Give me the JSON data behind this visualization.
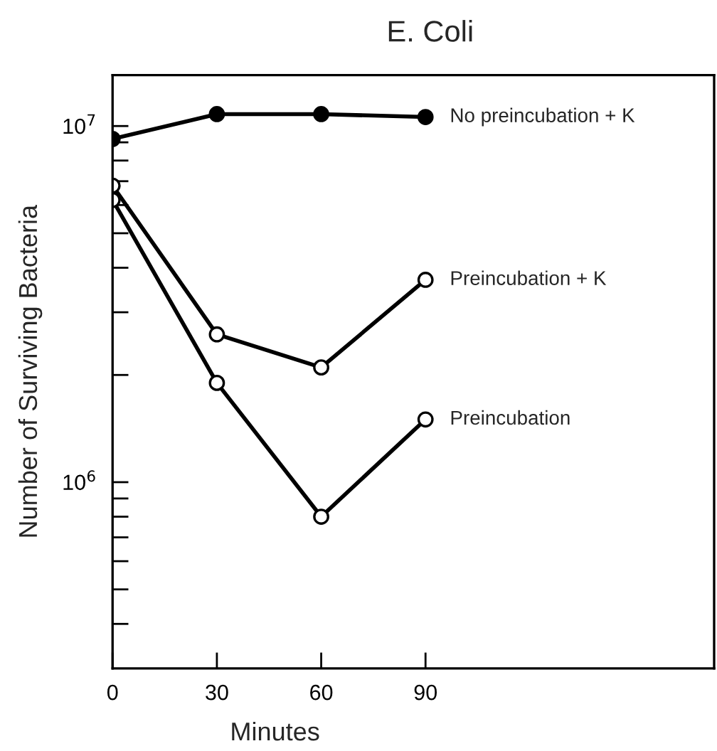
{
  "chart_data": {
    "type": "line",
    "title": "E. Coli",
    "xlabel": "Minutes",
    "ylabel": "Number of Surviving Bacteria",
    "x": [
      0,
      30,
      60,
      90
    ],
    "series": [
      {
        "name": "No preincubation + K",
        "color": "#000000",
        "values": [
          9200000,
          10800000,
          10800000,
          10600000
        ]
      },
      {
        "name": "Preincubation + K",
        "color": "#000000",
        "values": [
          6800000,
          2600000,
          2100000,
          3700000
        ]
      },
      {
        "name": "Preincubation",
        "color": "#000000",
        "values": [
          6200000,
          1900000,
          800000,
          1500000
        ]
      }
    ],
    "log": true,
    "xlim": [
      0,
      173
    ],
    "xticks": [
      0,
      30,
      60,
      90
    ],
    "ylim": [
      300000,
      13900000
    ],
    "yticks": [
      {
        "value": 400000,
        "label": null
      },
      {
        "value": 500000,
        "label": null
      },
      {
        "value": 600000,
        "label": null
      },
      {
        "value": 700000,
        "label": null
      },
      {
        "value": 800000,
        "label": null
      },
      {
        "value": 900000,
        "label": null
      },
      {
        "value": 1000000,
        "label": "10$^{6}$"
      },
      {
        "value": 2000000,
        "label": null
      },
      {
        "value": 3000000,
        "label": null
      },
      {
        "value": 4000000,
        "label": null
      },
      {
        "value": 5000000,
        "label": null
      },
      {
        "value": 6000000,
        "label": null
      },
      {
        "value": 7000000,
        "label": null
      },
      {
        "value": 8000000,
        "label": null
      },
      {
        "value": 9000000,
        "label": null
      },
      {
        "value": 10000000,
        "label": "10$^{7}$"
      }
    ],
    "grid": false,
    "legend": false,
    "marker": "circle",
    "line_style": "solid"
  }
}
